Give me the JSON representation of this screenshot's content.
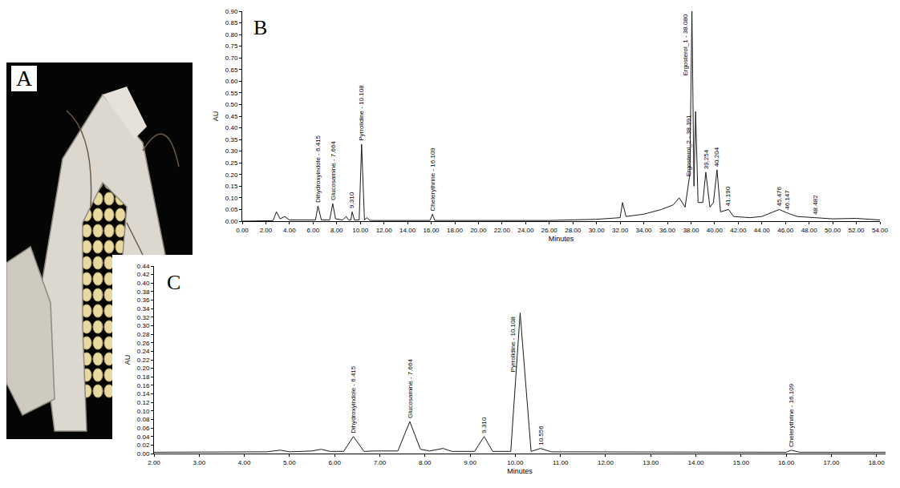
{
  "photo": {
    "label": "A"
  },
  "chart_data": [
    {
      "type": "line",
      "title": "B",
      "x_label": "Minutes",
      "y_label": "AU",
      "color": "#1a1a1a",
      "grid": false,
      "x": [
        0.0,
        2.6,
        2.9,
        3.2,
        3.6,
        4.0,
        6.2,
        6.415,
        6.7,
        7.4,
        7.664,
        7.9,
        8.5,
        8.8,
        9.0,
        9.2,
        9.31,
        9.5,
        9.9,
        10.108,
        10.35,
        10.556,
        10.8,
        15.9,
        16.109,
        16.3,
        26.0,
        30.0,
        32.0,
        32.2,
        32.5,
        34.0,
        35.5,
        36.5,
        37.0,
        37.5,
        37.9,
        38.08,
        38.25,
        38.39,
        38.6,
        39.0,
        39.254,
        39.6,
        39.9,
        40.204,
        40.5,
        41.19,
        41.6,
        43.0,
        44.0,
        45.476,
        46.147,
        47.0,
        48.482,
        50.0,
        52.0,
        54.0
      ],
      "values": [
        0.0,
        0.002,
        0.04,
        0.01,
        0.02,
        0.005,
        0.005,
        0.065,
        0.005,
        0.005,
        0.075,
        0.01,
        0.005,
        0.02,
        0.005,
        0.005,
        0.04,
        0.005,
        0.005,
        0.33,
        0.005,
        0.015,
        0.003,
        0.003,
        0.03,
        0.003,
        0.003,
        0.008,
        0.015,
        0.08,
        0.02,
        0.03,
        0.05,
        0.07,
        0.1,
        0.06,
        0.2,
        0.9,
        0.15,
        0.47,
        0.08,
        0.08,
        0.21,
        0.06,
        0.08,
        0.22,
        0.04,
        0.05,
        0.02,
        0.015,
        0.02,
        0.05,
        0.035,
        0.02,
        0.015,
        0.01,
        0.012,
        0.005
      ],
      "xlim": [
        0.0,
        54.0
      ],
      "xticks": [
        {
          "value": 0,
          "label": "0.00"
        },
        {
          "value": 2,
          "label": "2.00"
        },
        {
          "value": 4,
          "label": "4.00"
        },
        {
          "value": 6,
          "label": "6.00"
        },
        {
          "value": 8,
          "label": "8.00"
        },
        {
          "value": 10,
          "label": "10.00"
        },
        {
          "value": 12,
          "label": "12.00"
        },
        {
          "value": 14,
          "label": "14.00"
        },
        {
          "value": 16,
          "label": "16.00"
        },
        {
          "value": 18,
          "label": "18.00"
        },
        {
          "value": 20,
          "label": "20.00"
        },
        {
          "value": 22,
          "label": "22.00"
        },
        {
          "value": 24,
          "label": "24.00"
        },
        {
          "value": 26,
          "label": "26.00"
        },
        {
          "value": 28,
          "label": "28.00"
        },
        {
          "value": 30,
          "label": "30.00"
        },
        {
          "value": 32,
          "label": "32.00"
        },
        {
          "value": 34,
          "label": "34.00"
        },
        {
          "value": 36,
          "label": "36.00"
        },
        {
          "value": 38,
          "label": "38.00"
        },
        {
          "value": 40,
          "label": "40.00"
        },
        {
          "value": 42,
          "label": "42.00"
        },
        {
          "value": 44,
          "label": "44.00"
        },
        {
          "value": 46,
          "label": "46.00"
        },
        {
          "value": 48,
          "label": "48.00"
        },
        {
          "value": 50,
          "label": "50.00"
        },
        {
          "value": 52,
          "label": "52.00"
        },
        {
          "value": 54,
          "label": "54.00"
        }
      ],
      "ylim": [
        0.0,
        0.9
      ],
      "yticks": [
        {
          "value": 0,
          "label": "0.00"
        },
        {
          "value": 0.05,
          "label": "0.05"
        },
        {
          "value": 0.1,
          "label": "0.10"
        },
        {
          "value": 0.15,
          "label": "0.15"
        },
        {
          "value": 0.2,
          "label": "0.20"
        },
        {
          "value": 0.25,
          "label": "0.25"
        },
        {
          "value": 0.3,
          "label": "0.30"
        },
        {
          "value": 0.35,
          "label": "0.35"
        },
        {
          "value": 0.4,
          "label": "0.40"
        },
        {
          "value": 0.45,
          "label": "0.45"
        },
        {
          "value": 0.5,
          "label": "0.50"
        },
        {
          "value": 0.55,
          "label": "0.55"
        },
        {
          "value": 0.6,
          "label": "0.60"
        },
        {
          "value": 0.65,
          "label": "0.65"
        },
        {
          "value": 0.7,
          "label": "0.70"
        },
        {
          "value": 0.75,
          "label": "0.75"
        },
        {
          "value": 0.8,
          "label": "0.80"
        },
        {
          "value": 0.85,
          "label": "0.85"
        },
        {
          "value": 0.9,
          "label": "0.90"
        }
      ],
      "annotations": [
        {
          "text": "Dihydroxyindole - 6.415",
          "x": 6.415,
          "y": 0.065
        },
        {
          "text": "Glucosamine - 7.664",
          "x": 7.664,
          "y": 0.075
        },
        {
          "text": "9.310",
          "x": 9.31,
          "y": 0.04
        },
        {
          "text": "Pyrrolidine - 10.108",
          "x": 10.108,
          "y": 0.33
        },
        {
          "text": "Chelerythrine - 16.109",
          "x": 16.109,
          "y": 0.03
        },
        {
          "text": "Ergosterol_1 - 38.080",
          "x": 38.08,
          "y": 0.9
        },
        {
          "text": "Ergosterol_2 - 38.391",
          "x": 38.39,
          "y": 0.47
        },
        {
          "text": "39.254",
          "x": 39.254,
          "y": 0.21
        },
        {
          "text": "40.204",
          "x": 40.204,
          "y": 0.22
        },
        {
          "text": "41.190",
          "x": 41.19,
          "y": 0.05
        },
        {
          "text": "45.476",
          "x": 45.476,
          "y": 0.05
        },
        {
          "text": "46.147",
          "x": 46.147,
          "y": 0.035
        },
        {
          "text": "48.482",
          "x": 48.482,
          "y": 0.015
        }
      ]
    },
    {
      "type": "line",
      "title": "C",
      "x_label": "Minutes",
      "y_label": "AU",
      "color": "#1a1a1a",
      "grid": false,
      "x": [
        2.0,
        4.5,
        4.8,
        5.0,
        5.5,
        5.7,
        5.9,
        6.2,
        6.415,
        6.65,
        6.9,
        7.4,
        7.664,
        7.9,
        8.1,
        8.4,
        8.6,
        9.1,
        9.31,
        9.5,
        9.9,
        10.108,
        10.35,
        10.556,
        10.8,
        16.0,
        16.109,
        16.3,
        18.2
      ],
      "values": [
        0.003,
        0.004,
        0.008,
        0.004,
        0.006,
        0.01,
        0.005,
        0.005,
        0.04,
        0.005,
        0.006,
        0.006,
        0.075,
        0.01,
        0.006,
        0.012,
        0.005,
        0.005,
        0.04,
        0.005,
        0.005,
        0.33,
        0.005,
        0.012,
        0.004,
        0.003,
        0.008,
        0.003,
        0.003
      ],
      "xlim": [
        2.0,
        18.2
      ],
      "xticks": [
        {
          "value": 2,
          "label": "2.00"
        },
        {
          "value": 3,
          "label": "3.00"
        },
        {
          "value": 4,
          "label": "4.00"
        },
        {
          "value": 5,
          "label": "5.00"
        },
        {
          "value": 6,
          "label": "6.00"
        },
        {
          "value": 7,
          "label": "7.00"
        },
        {
          "value": 8,
          "label": "8.00"
        },
        {
          "value": 9,
          "label": "9.00"
        },
        {
          "value": 10,
          "label": "10.00"
        },
        {
          "value": 11,
          "label": "11.00"
        },
        {
          "value": 12,
          "label": "12.00"
        },
        {
          "value": 13,
          "label": "13.00"
        },
        {
          "value": 14,
          "label": "14.00"
        },
        {
          "value": 15,
          "label": "15.00"
        },
        {
          "value": 16,
          "label": "16.00"
        },
        {
          "value": 17,
          "label": "17.00"
        },
        {
          "value": 18,
          "label": "18.00"
        }
      ],
      "ylim": [
        0.0,
        0.44
      ],
      "yticks": [
        {
          "value": 0,
          "label": "0.00"
        },
        {
          "value": 0.02,
          "label": "0.02"
        },
        {
          "value": 0.04,
          "label": "0.04"
        },
        {
          "value": 0.06,
          "label": "0.06"
        },
        {
          "value": 0.08,
          "label": "0.08"
        },
        {
          "value": 0.1,
          "label": "0.10"
        },
        {
          "value": 0.12,
          "label": "0.12"
        },
        {
          "value": 0.14,
          "label": "0.14"
        },
        {
          "value": 0.16,
          "label": "0.16"
        },
        {
          "value": 0.18,
          "label": "0.18"
        },
        {
          "value": 0.2,
          "label": "0.20"
        },
        {
          "value": 0.22,
          "label": "0.22"
        },
        {
          "value": 0.24,
          "label": "0.24"
        },
        {
          "value": 0.26,
          "label": "0.26"
        },
        {
          "value": 0.28,
          "label": "0.28"
        },
        {
          "value": 0.3,
          "label": "0.30"
        },
        {
          "value": 0.32,
          "label": "0.32"
        },
        {
          "value": 0.34,
          "label": "0.34"
        },
        {
          "value": 0.36,
          "label": "0.36"
        },
        {
          "value": 0.38,
          "label": "0.38"
        },
        {
          "value": 0.4,
          "label": "0.40"
        },
        {
          "value": 0.42,
          "label": "0.42"
        },
        {
          "value": 0.44,
          "label": "0.44"
        }
      ],
      "annotations": [
        {
          "text": "Dihydroxyindole - 6.415",
          "x": 6.415,
          "y": 0.04
        },
        {
          "text": "Glucosamine - 7.664",
          "x": 7.664,
          "y": 0.075
        },
        {
          "text": "9.310",
          "x": 9.31,
          "y": 0.04
        },
        {
          "text": "Pyrrolidine - 10.108",
          "x": 10.108,
          "y": 0.33
        },
        {
          "text": "10.556",
          "x": 10.556,
          "y": 0.012
        },
        {
          "text": "Chelerythrine - 16.109",
          "x": 16.109,
          "y": 0.008
        }
      ]
    }
  ]
}
